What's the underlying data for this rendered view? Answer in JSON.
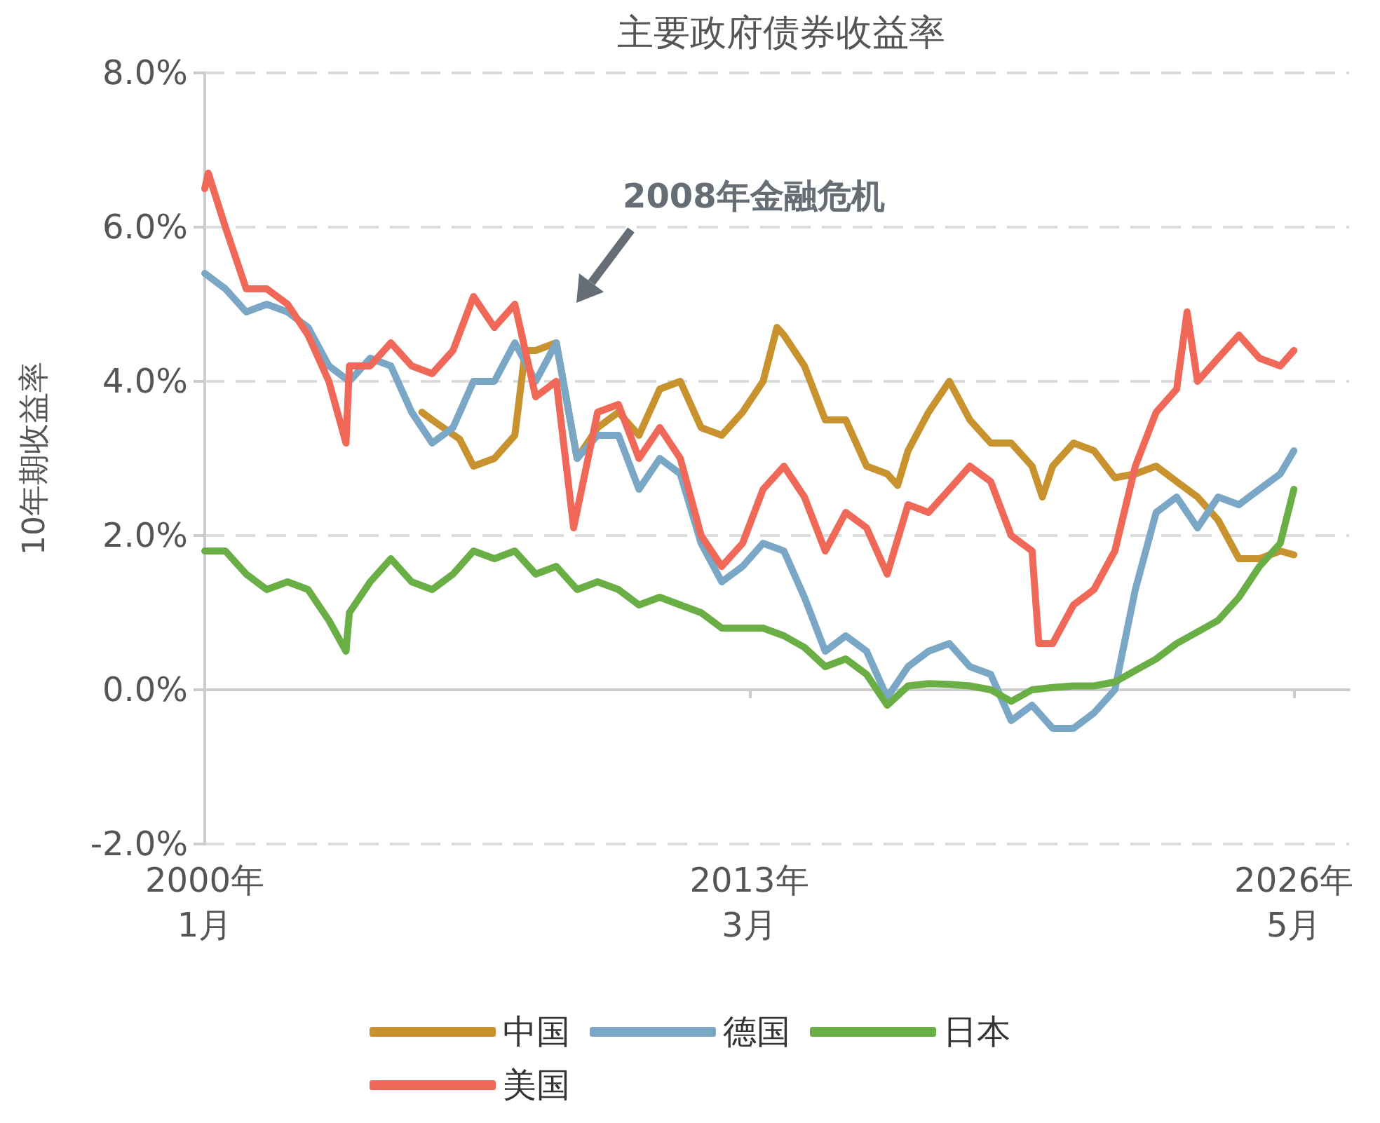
{
  "chart_data": {
    "type": "line",
    "title": "主要政府债券收益率",
    "ylabel": "10年期收益率",
    "annotations": [
      "2008年金融危机"
    ],
    "xlim": [
      "2000-01",
      "2027-09"
    ],
    "xticks": [
      {
        "value": "2000-01",
        "label": "2000年\n1月"
      },
      {
        "value": "2013-03",
        "label": "2013年\n3月"
      },
      {
        "value": "2026-05",
        "label": "2026年\n5月"
      }
    ],
    "ylim": [
      -2,
      8
    ],
    "yticks": [
      {
        "value": -2,
        "label": "-2.0%"
      },
      {
        "value": 0,
        "label": "0.0%"
      },
      {
        "value": 2,
        "label": "2.0%"
      },
      {
        "value": 4,
        "label": "4.0%"
      },
      {
        "value": 6,
        "label": "6.0%"
      },
      {
        "value": 8,
        "label": "8.0%"
      }
    ],
    "grid": "y",
    "legend": "bottom",
    "marker": "none",
    "line_style": "solid",
    "series": [
      {
        "name": "中国",
        "color": "#c8922e",
        "x": [
          "2005-04",
          "2005-07",
          "2006-03",
          "2006-07",
          "2007-01",
          "2007-07",
          "2007-10",
          "2008-01",
          "2008-07",
          "2009-01",
          "2009-07",
          "2010-01",
          "2010-07",
          "2011-01",
          "2011-07",
          "2012-01",
          "2012-07",
          "2013-01",
          "2013-07",
          "2013-11",
          "2014-01",
          "2014-07",
          "2015-01",
          "2015-07",
          "2016-01",
          "2016-07",
          "2016-10",
          "2017-01",
          "2017-07",
          "2018-01",
          "2018-07",
          "2019-01",
          "2019-07",
          "2020-01",
          "2020-04",
          "2020-07",
          "2021-01",
          "2021-07",
          "2022-01",
          "2022-07",
          "2023-01",
          "2023-07",
          "2024-01",
          "2024-07",
          "2025-01",
          "2025-07",
          "2026-01",
          "2026-05"
        ],
        "values": [
          3.6,
          3.5,
          3.25,
          2.9,
          3.0,
          3.3,
          4.4,
          4.4,
          4.5,
          3.0,
          3.4,
          3.6,
          3.3,
          3.9,
          4.0,
          3.4,
          3.3,
          3.6,
          4.0,
          4.7,
          4.6,
          4.2,
          3.5,
          3.5,
          2.9,
          2.8,
          2.65,
          3.1,
          3.6,
          4.0,
          3.5,
          3.2,
          3.2,
          2.9,
          2.5,
          2.9,
          3.2,
          3.1,
          2.75,
          2.8,
          2.9,
          2.7,
          2.5,
          2.2,
          1.7,
          1.7,
          1.8,
          1.75
        ]
      },
      {
        "name": "德国",
        "color": "#7ba7c7",
        "x": [
          "2000-01",
          "2000-07",
          "2001-01",
          "2001-07",
          "2002-01",
          "2002-07",
          "2003-01",
          "2003-07",
          "2004-01",
          "2004-07",
          "2005-01",
          "2005-07",
          "2006-01",
          "2006-07",
          "2007-01",
          "2007-07",
          "2008-01",
          "2008-07",
          "2009-01",
          "2009-07",
          "2010-01",
          "2010-07",
          "2011-01",
          "2011-07",
          "2012-01",
          "2012-07",
          "2013-01",
          "2013-07",
          "2014-01",
          "2014-07",
          "2015-01",
          "2015-07",
          "2016-01",
          "2016-07",
          "2017-01",
          "2017-07",
          "2018-01",
          "2018-07",
          "2019-01",
          "2019-07",
          "2020-01",
          "2020-07",
          "2021-01",
          "2021-07",
          "2022-01",
          "2022-07",
          "2023-01",
          "2023-07",
          "2024-01",
          "2024-07",
          "2025-01",
          "2025-07",
          "2026-01",
          "2026-05"
        ],
        "values": [
          5.4,
          5.2,
          4.9,
          5.0,
          4.9,
          4.7,
          4.2,
          4.0,
          4.3,
          4.2,
          3.6,
          3.2,
          3.4,
          4.0,
          4.0,
          4.5,
          4.0,
          4.5,
          3.0,
          3.3,
          3.3,
          2.6,
          3.0,
          2.8,
          1.9,
          1.4,
          1.6,
          1.9,
          1.8,
          1.2,
          0.5,
          0.7,
          0.5,
          -0.1,
          0.3,
          0.5,
          0.6,
          0.3,
          0.2,
          -0.4,
          -0.2,
          -0.5,
          -0.5,
          -0.3,
          0.0,
          1.3,
          2.3,
          2.5,
          2.1,
          2.5,
          2.4,
          2.6,
          2.8,
          3.1
        ]
      },
      {
        "name": "日本",
        "color": "#6aaf45",
        "x": [
          "2000-01",
          "2000-07",
          "2001-01",
          "2001-07",
          "2002-01",
          "2002-07",
          "2003-01",
          "2003-06",
          "2003-07",
          "2004-01",
          "2004-07",
          "2005-01",
          "2005-07",
          "2006-01",
          "2006-07",
          "2007-01",
          "2007-07",
          "2008-01",
          "2008-07",
          "2009-01",
          "2009-07",
          "2010-01",
          "2010-07",
          "2011-01",
          "2011-07",
          "2012-01",
          "2012-07",
          "2013-01",
          "2013-07",
          "2014-01",
          "2014-07",
          "2015-01",
          "2015-07",
          "2016-01",
          "2016-07",
          "2017-01",
          "2017-07",
          "2018-01",
          "2018-07",
          "2019-01",
          "2019-07",
          "2020-01",
          "2020-07",
          "2021-01",
          "2021-07",
          "2022-01",
          "2022-07",
          "2023-01",
          "2023-07",
          "2024-01",
          "2024-07",
          "2025-01",
          "2025-07",
          "2026-01",
          "2026-05"
        ],
        "values": [
          1.8,
          1.8,
          1.5,
          1.3,
          1.4,
          1.3,
          0.9,
          0.5,
          1.0,
          1.4,
          1.7,
          1.4,
          1.3,
          1.5,
          1.8,
          1.7,
          1.8,
          1.5,
          1.6,
          1.3,
          1.4,
          1.3,
          1.1,
          1.2,
          1.1,
          1.0,
          0.8,
          0.8,
          0.8,
          0.7,
          0.55,
          0.3,
          0.4,
          0.2,
          -0.2,
          0.05,
          0.08,
          0.07,
          0.05,
          0.0,
          -0.15,
          0.0,
          0.03,
          0.05,
          0.05,
          0.1,
          0.25,
          0.4,
          0.6,
          0.75,
          0.9,
          1.2,
          1.6,
          1.9,
          2.6
        ]
      },
      {
        "name": "美国",
        "color": "#f06857",
        "x": [
          "2000-01",
          "2000-02",
          "2000-07",
          "2001-01",
          "2001-07",
          "2002-01",
          "2002-07",
          "2003-01",
          "2003-06",
          "2003-07",
          "2004-01",
          "2004-07",
          "2005-01",
          "2005-07",
          "2006-01",
          "2006-07",
          "2007-01",
          "2007-07",
          "2008-01",
          "2008-07",
          "2008-12",
          "2009-07",
          "2010-01",
          "2010-07",
          "2011-01",
          "2011-07",
          "2012-01",
          "2012-07",
          "2013-01",
          "2013-07",
          "2014-01",
          "2014-07",
          "2015-01",
          "2015-07",
          "2016-01",
          "2016-07",
          "2017-01",
          "2017-07",
          "2018-01",
          "2018-07",
          "2019-01",
          "2019-07",
          "2020-01",
          "2020-03",
          "2020-07",
          "2021-01",
          "2021-07",
          "2022-01",
          "2022-07",
          "2023-01",
          "2023-07",
          "2023-10",
          "2024-01",
          "2024-07",
          "2025-01",
          "2025-07",
          "2026-01",
          "2026-05"
        ],
        "values": [
          6.5,
          6.7,
          6.0,
          5.2,
          5.2,
          5.0,
          4.6,
          4.0,
          3.2,
          4.2,
          4.2,
          4.5,
          4.2,
          4.1,
          4.4,
          5.1,
          4.7,
          5.0,
          3.8,
          4.0,
          2.1,
          3.6,
          3.7,
          3.0,
          3.4,
          3.0,
          2.0,
          1.6,
          1.9,
          2.6,
          2.9,
          2.5,
          1.8,
          2.3,
          2.1,
          1.5,
          2.4,
          2.3,
          2.6,
          2.9,
          2.7,
          2.0,
          1.8,
          0.6,
          0.6,
          1.1,
          1.3,
          1.8,
          2.9,
          3.6,
          3.9,
          4.9,
          4.0,
          4.3,
          4.6,
          4.3,
          4.2,
          4.4
        ]
      }
    ]
  }
}
